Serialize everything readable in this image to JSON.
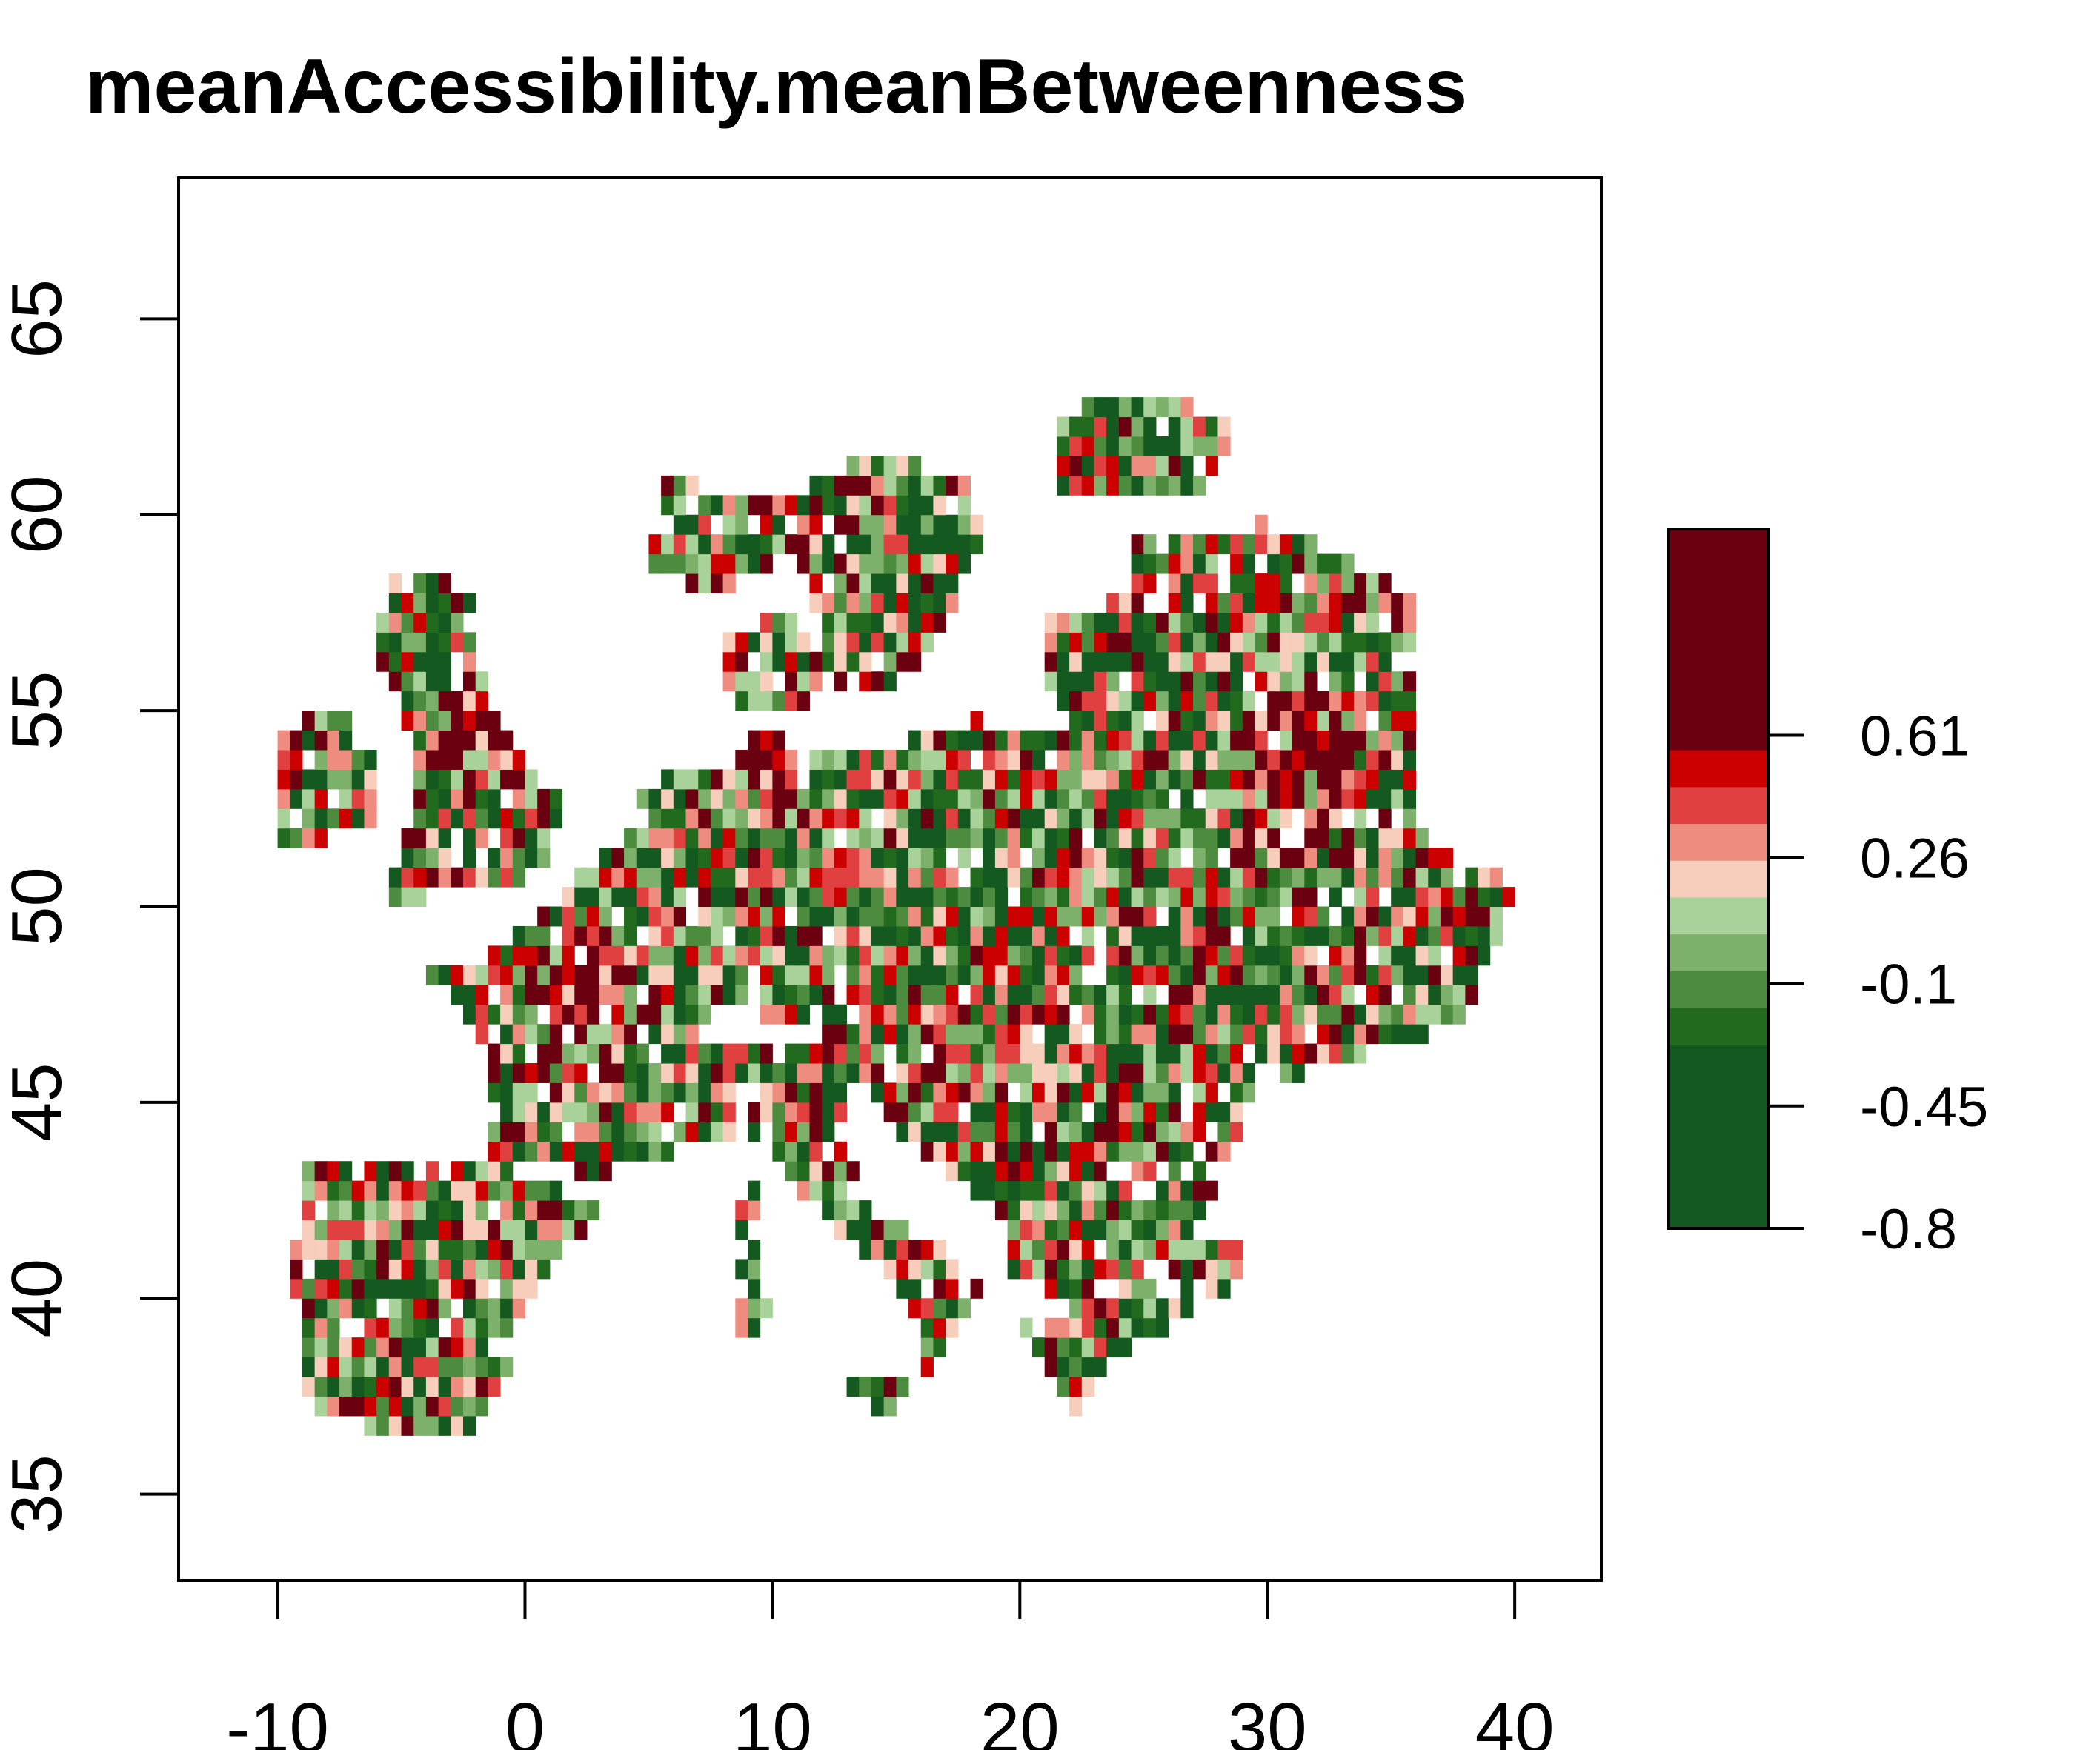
{
  "title": "meanAccessibility.meanBetweenness",
  "map": {
    "type": "raster",
    "region": "Europe",
    "xlim": [
      -14,
      43.5
    ],
    "ylim": [
      32.8,
      68.6
    ],
    "x_ticks": [
      "-10",
      "0",
      "10",
      "20",
      "30",
      "40"
    ],
    "x_tick_values": [
      -10,
      0,
      10,
      20,
      30,
      40
    ],
    "y_ticks": [
      "35",
      "40",
      "45",
      "50",
      "55",
      "60",
      "65"
    ],
    "y_tick_values": [
      35,
      40,
      45,
      50,
      55,
      60,
      65
    ],
    "grid": false,
    "legend_placement": "right"
  },
  "legend": {
    "labels": [
      "0.61",
      "0.26",
      "-0.1",
      "-0.45",
      "-0.8"
    ],
    "label_values": [
      0.61,
      0.26,
      -0.1,
      -0.45,
      -0.8
    ],
    "range": [
      -0.8,
      1.2
    ],
    "colors": [
      "#145a20",
      "#145a20",
      "#145a20",
      "#145a20",
      "#145a20",
      "#226b1e",
      "#4d8b3e",
      "#7db06a",
      "#a9d29a",
      "#f7cdbb",
      "#ef8c80",
      "#e04040",
      "#cc0000",
      "#6b0010",
      "#6b0010",
      "#6b0010",
      "#6b0010",
      "#6b0010",
      "#6b0010"
    ]
  }
}
